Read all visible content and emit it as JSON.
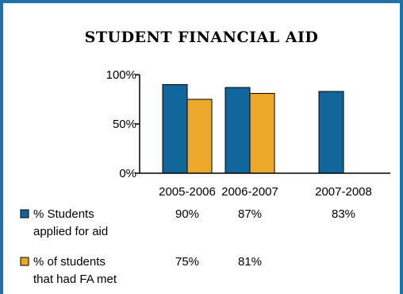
{
  "chart_data": {
    "type": "bar",
    "title": "STUDENT FINANCIAL AID",
    "categories": [
      "2005-2006",
      "2006-2007",
      "2007-2008"
    ],
    "ylim": [
      0,
      100
    ],
    "yticks": [
      {
        "value": 0,
        "label": "0%"
      },
      {
        "value": 50,
        "label": "50%"
      },
      {
        "value": 100,
        "label": "100%"
      }
    ],
    "series": [
      {
        "name": [
          "% Students",
          "applied for aid"
        ],
        "color": "#11669b",
        "values": [
          90,
          87,
          83
        ],
        "labels": [
          "90%",
          "87%",
          "83%"
        ]
      },
      {
        "name": [
          "% of students",
          "that had FA met"
        ],
        "color": "#eba82a",
        "values": [
          75,
          81,
          null
        ],
        "labels": [
          "75%",
          "81%",
          ""
        ]
      }
    ],
    "grid": false,
    "legend": "bottom data table"
  },
  "colors": {
    "frame": "#1f72a8",
    "axis": "#000000"
  }
}
